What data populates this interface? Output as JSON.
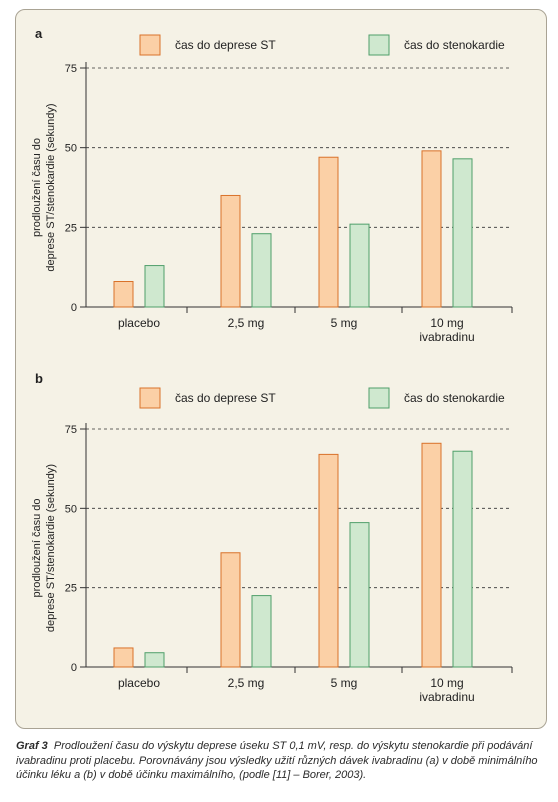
{
  "colors": {
    "orange_fill": "#fbd0a6",
    "orange_edge": "#d9722a",
    "green_fill": "#cfe8cf",
    "green_edge": "#4f9f6a",
    "panel_bg": "#f5f2e6"
  },
  "chart_data": [
    {
      "type": "bar",
      "panel_label": "a",
      "title": "",
      "ylabel": "prodloužení času do deprese ST/stenokardie (sekundy)",
      "ylabel_lines": [
        "prodloužení času do",
        "deprese ST/stenokardie (sekundy)"
      ],
      "xlabel": "",
      "ylim": [
        0,
        75
      ],
      "yticks": [
        0,
        25,
        50,
        75
      ],
      "grid": "dashed-horizontal",
      "legend_position": "top",
      "categories": [
        [
          "placebo"
        ],
        [
          "2,5 mg"
        ],
        [
          "5 mg"
        ],
        [
          "10 mg",
          "ivabradinu"
        ]
      ],
      "series": [
        {
          "name": "čas do deprese ST",
          "color": "orange",
          "values": [
            8,
            35,
            47,
            49
          ]
        },
        {
          "name": "čas do stenokardie",
          "color": "green",
          "values": [
            13,
            23,
            26,
            46.5
          ]
        }
      ]
    },
    {
      "type": "bar",
      "panel_label": "b",
      "title": "",
      "ylabel": "prodloužení času do deprese ST/stenokardie (sekundy)",
      "ylabel_lines": [
        "prodloužení času do",
        "deprese ST/stenokardie (sekundy)"
      ],
      "xlabel": "",
      "ylim": [
        0,
        75
      ],
      "yticks": [
        0,
        25,
        50,
        75
      ],
      "grid": "dashed-horizontal",
      "legend_position": "top",
      "categories": [
        [
          "placebo"
        ],
        [
          "2,5 mg"
        ],
        [
          "5 mg"
        ],
        [
          "10 mg",
          "ivabradinu"
        ]
      ],
      "series": [
        {
          "name": "čas do deprese ST",
          "color": "orange",
          "values": [
            6,
            36,
            67,
            70.5
          ]
        },
        {
          "name": "čas do stenokardie",
          "color": "green",
          "values": [
            4.5,
            22.5,
            45.5,
            68
          ]
        }
      ]
    }
  ],
  "caption": {
    "label": "Graf 3",
    "text": "Prodloužení času do výskytu deprese úseku ST 0,1 mV, resp. do výskytu stenokardie při podávání ivabradinu proti placebu. Porovnávány jsou výsledky užití různých dávek ivabradinu (a) v době minimálního účinku léku a (b) v době účinku maximálního, (podle [11] – Borer, 2003)."
  }
}
